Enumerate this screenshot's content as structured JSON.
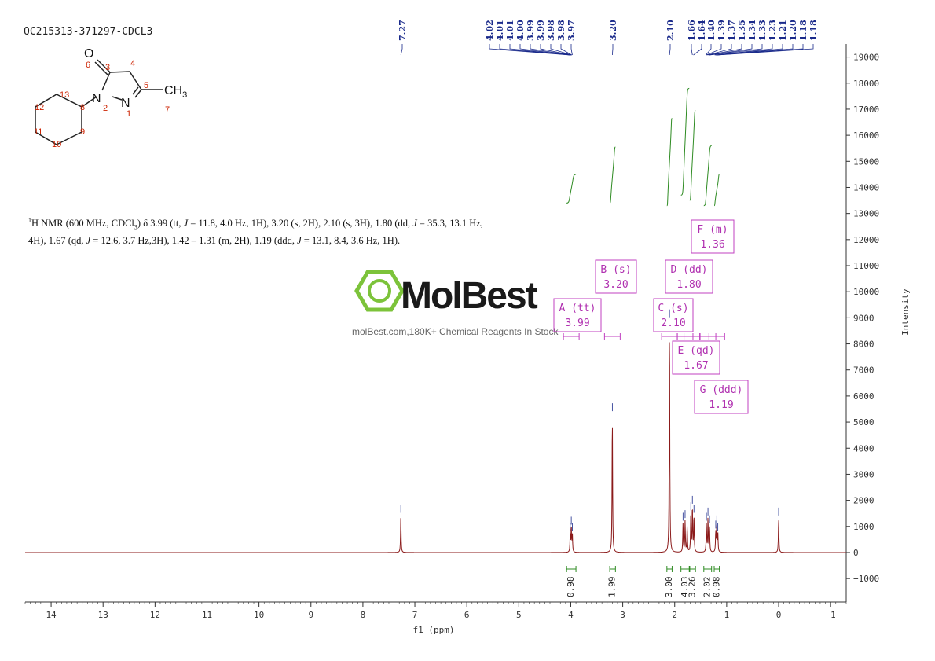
{
  "sample_id": "QC215313-371297-CDCL3",
  "nmr_description": {
    "nucleus_sup": "1",
    "lead": "H NMR (600 MHz, CDCl",
    "solvent_sub": "3",
    "parts": [
      ") δ 3.99 (tt, ",
      "J",
      " = 11.8, 4.0 Hz, 1H), 3.20 (s, 2H), 2.10 (s, 3H), 1.80 (dd, ",
      "J",
      " = 35.3, 13.1 Hz, 4H), 1.67 (qd, ",
      "J",
      " = 12.6, 3.7 Hz,3H), 1.42 – 1.31 (m, 2H), 1.19 (ddd, ",
      "J",
      " = 13.1, 8.4, 3.6 Hz, 1H)."
    ]
  },
  "watermark": {
    "brand": "MolBest",
    "tagline": "molBest.com,180K+ Chemical Reagents In Stock"
  },
  "molecule": {
    "atoms": {
      "o": "O",
      "n2": "N",
      "n1": "N",
      "ch3": "CH",
      "ch3_sub": "3"
    },
    "numbers": [
      "6",
      "3",
      "4",
      "5",
      "7",
      "2",
      "1",
      "8",
      "13",
      "12",
      "11",
      "10",
      "9"
    ]
  },
  "colors": {
    "spectrum": "#8b1a1a",
    "integral": "#2e8b22",
    "peak_marker": "#1a2a8b",
    "label_box": "#c040c0",
    "atom_number": "#cc2200",
    "axis": "#333333",
    "watermark_green": "#7cc33a"
  },
  "chart_data": {
    "type": "line",
    "xlabel": "f1 (ppm)",
    "ylabel": "Intensity",
    "xlim": [
      14.5,
      -1.3
    ],
    "ylim": [
      -1900,
      19500
    ],
    "x_ticks": [
      14,
      13,
      12,
      11,
      10,
      9,
      8,
      7,
      6,
      5,
      4,
      3,
      2,
      1,
      0,
      -1
    ],
    "x_tick_labels": [
      "14",
      "13",
      "12",
      "11",
      "10",
      "9",
      "8",
      "7",
      "6",
      "5",
      "4",
      "3",
      "2",
      "1",
      "0",
      "−1"
    ],
    "y_ticks": [
      19000,
      18000,
      17000,
      16000,
      15000,
      14000,
      13000,
      12000,
      11000,
      10000,
      9000,
      8000,
      7000,
      6000,
      5000,
      4000,
      3000,
      2000,
      1000,
      0,
      -1000
    ],
    "y_tick_labels": [
      "19000",
      "18000",
      "17000",
      "16000",
      "15000",
      "14000",
      "13000",
      "12000",
      "11000",
      "10000",
      "9000",
      "8000",
      "7000",
      "6000",
      "5000",
      "4000",
      "3000",
      "2000",
      "1000",
      "0",
      "−1000"
    ],
    "peaks": [
      {
        "ppm": 7.27,
        "height": 1400
      },
      {
        "ppm": 4.01,
        "height": 700
      },
      {
        "ppm": 3.99,
        "height": 950
      },
      {
        "ppm": 3.97,
        "height": 700
      },
      {
        "ppm": 3.2,
        "height": 5300
      },
      {
        "ppm": 2.1,
        "height": 8900
      },
      {
        "ppm": 1.84,
        "height": 1100
      },
      {
        "ppm": 1.8,
        "height": 1200
      },
      {
        "ppm": 1.76,
        "height": 1000
      },
      {
        "ppm": 1.69,
        "height": 1500
      },
      {
        "ppm": 1.66,
        "height": 1750
      },
      {
        "ppm": 1.63,
        "height": 1400
      },
      {
        "ppm": 1.39,
        "height": 1100
      },
      {
        "ppm": 1.36,
        "height": 1300
      },
      {
        "ppm": 1.33,
        "height": 1000
      },
      {
        "ppm": 1.21,
        "height": 800
      },
      {
        "ppm": 1.19,
        "height": 1000
      },
      {
        "ppm": 1.17,
        "height": 700
      },
      {
        "ppm": 0.0,
        "height": 1300
      }
    ],
    "peak_labels": [
      "7.27",
      "4.02",
      "4.01",
      "4.01",
      "4.00",
      "3.99",
      "3.99",
      "3.98",
      "3.98",
      "3.97",
      "3.20",
      "2.10",
      "1.66",
      "1.64",
      "1.40",
      "1.39",
      "1.37",
      "1.35",
      "1.34",
      "1.33",
      "1.23",
      "1.21",
      "1.20",
      "1.18",
      "1.18"
    ],
    "peak_label_ppm": [
      7.27,
      4.02,
      4.01,
      4.01,
      4.0,
      3.99,
      3.99,
      3.98,
      3.98,
      3.97,
      3.2,
      2.1,
      1.66,
      1.64,
      1.4,
      1.39,
      1.37,
      1.35,
      1.34,
      1.33,
      1.23,
      1.21,
      1.2,
      1.18,
      1.18
    ],
    "integrals": [
      {
        "from": 4.08,
        "to": 3.9,
        "value": "0.98",
        "base": 13400,
        "top": 14500
      },
      {
        "from": 3.25,
        "to": 3.14,
        "value": "1.99",
        "base": 13400,
        "top": 15550
      },
      {
        "from": 2.15,
        "to": 2.05,
        "value": "3.00",
        "base": 13300,
        "top": 16650
      },
      {
        "from": 1.88,
        "to": 1.72,
        "value": "4.03",
        "base": 13700,
        "top": 17800
      },
      {
        "from": 1.71,
        "to": 1.6,
        "value": "3.26",
        "base": 13500,
        "top": 16950
      },
      {
        "from": 1.44,
        "to": 1.29,
        "value": "2.02",
        "base": 13300,
        "top": 15600
      },
      {
        "from": 1.24,
        "to": 1.14,
        "value": "0.98",
        "base": 13300,
        "top": 14500
      }
    ],
    "multiplet_labels": [
      {
        "id": "A",
        "text": "A (tt)",
        "shift": "3.99",
        "anchor_ppm": 3.99
      },
      {
        "id": "B",
        "text": "B (s)",
        "shift": "3.20",
        "anchor_ppm": 3.2
      },
      {
        "id": "C",
        "text": "C (s)",
        "shift": "2.10",
        "anchor_ppm": 2.1
      },
      {
        "id": "D",
        "text": "D (dd)",
        "shift": "1.80",
        "anchor_ppm": 1.8
      },
      {
        "id": "E",
        "text": "E (qd)",
        "shift": "1.67",
        "anchor_ppm": 1.67
      },
      {
        "id": "F",
        "text": "F (m)",
        "shift": "1.36",
        "anchor_ppm": 1.36
      },
      {
        "id": "G",
        "text": "G (ddd)",
        "shift": "1.19",
        "anchor_ppm": 1.19
      }
    ]
  }
}
